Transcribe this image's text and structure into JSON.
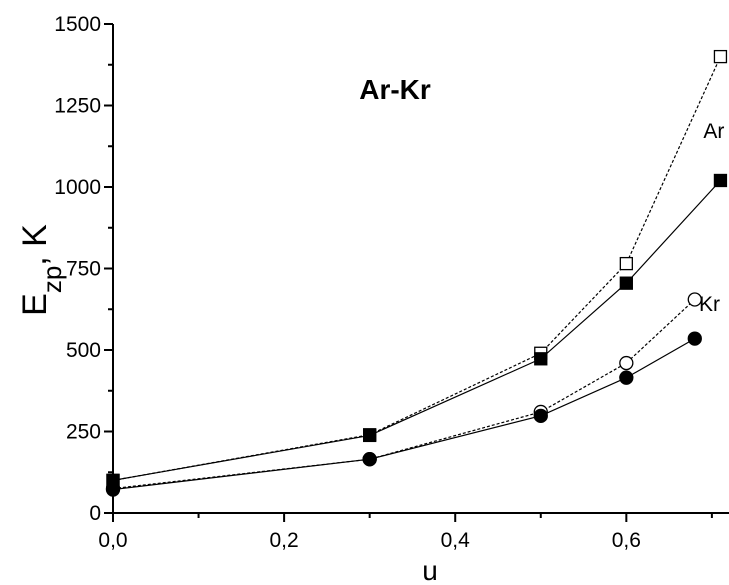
{
  "chart_data": {
    "type": "line",
    "title": "Ar-Kr",
    "xlabel": "u",
    "ylabel": {
      "base": "E",
      "sub": "zp",
      "suffix": ", K"
    },
    "xlim": [
      0.0,
      0.72
    ],
    "ylim": [
      0,
      1500
    ],
    "x_ticks": [
      0.0,
      0.2,
      0.4,
      0.6
    ],
    "x_tick_labels": [
      "0,0",
      "0,2",
      "0,4",
      "0,6"
    ],
    "y_ticks": [
      0,
      250,
      500,
      750,
      1000,
      1250,
      1500
    ],
    "y_tick_labels": [
      "0",
      "250",
      "500",
      "750",
      "1000",
      "1250",
      "1500"
    ],
    "grid": false,
    "annotations": [
      {
        "text": "Ar",
        "x": 0.69,
        "y": 1150
      },
      {
        "text": "Kr",
        "x": 0.685,
        "y": 620
      }
    ],
    "series": [
      {
        "marker": "square-open",
        "line": "dotted",
        "x": [
          0.0,
          0.3,
          0.5,
          0.6,
          0.71
        ],
        "y": [
          100,
          240,
          490,
          765,
          1400
        ]
      },
      {
        "marker": "square-filled",
        "line": "solid",
        "x": [
          0.0,
          0.3,
          0.5,
          0.6,
          0.71
        ],
        "y": [
          100,
          238,
          473,
          705,
          1020
        ]
      },
      {
        "marker": "circle-open",
        "line": "dotted",
        "x": [
          0.0,
          0.3,
          0.5,
          0.6,
          0.68
        ],
        "y": [
          75,
          165,
          310,
          460,
          655
        ]
      },
      {
        "marker": "circle-filled",
        "line": "solid",
        "x": [
          0.0,
          0.3,
          0.5,
          0.6,
          0.68
        ],
        "y": [
          72,
          165,
          298,
          415,
          535
        ]
      }
    ],
    "colors": {
      "axis": "#000000",
      "marker": "#000000",
      "background": "#ffffff"
    }
  }
}
